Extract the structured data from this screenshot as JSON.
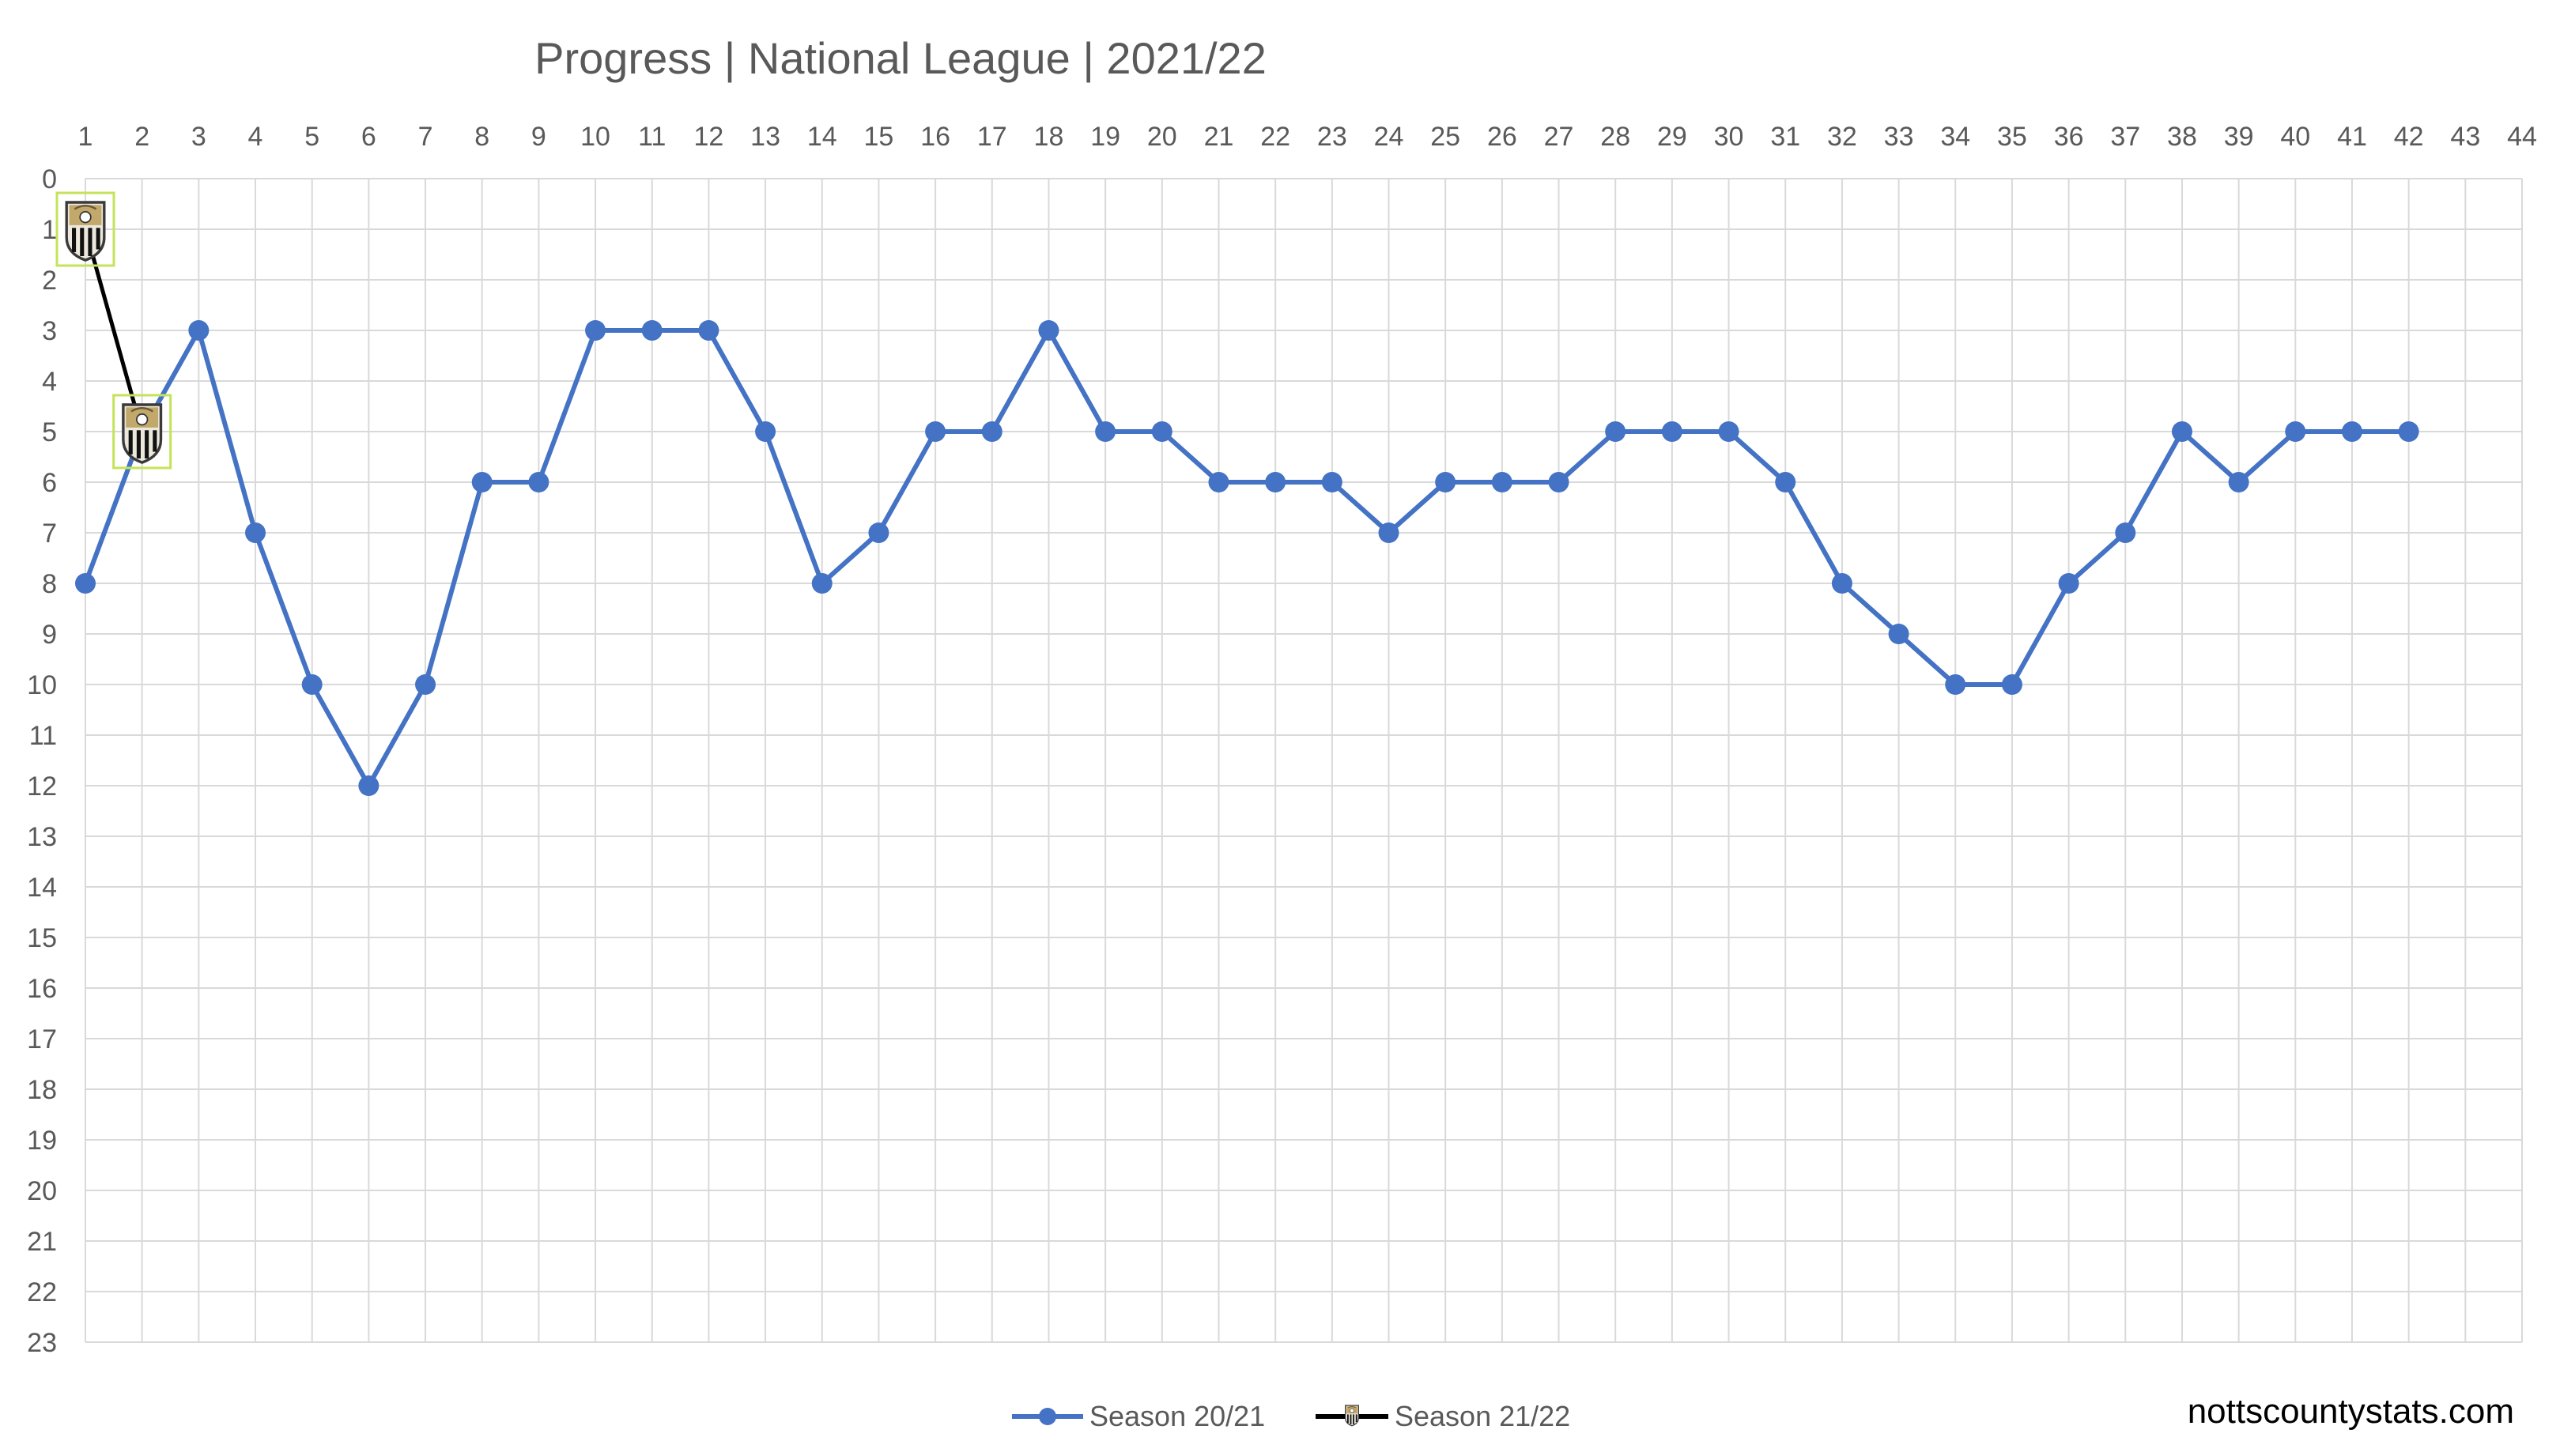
{
  "chart_data": {
    "type": "line",
    "title": "Progress | National League | 2021/22",
    "xlabel": "",
    "ylabel": "",
    "x_ticks": [
      1,
      2,
      3,
      4,
      5,
      6,
      7,
      8,
      9,
      10,
      11,
      12,
      13,
      14,
      15,
      16,
      17,
      18,
      19,
      20,
      21,
      22,
      23,
      24,
      25,
      26,
      27,
      28,
      29,
      30,
      31,
      32,
      33,
      34,
      35,
      36,
      37,
      38,
      39,
      40,
      41,
      42,
      43,
      44
    ],
    "xlim": [
      1,
      44
    ],
    "ylim": [
      0,
      23
    ],
    "y_reversed": true,
    "y_ticks": [
      0,
      1,
      2,
      3,
      4,
      5,
      6,
      7,
      8,
      9,
      10,
      11,
      12,
      13,
      14,
      15,
      16,
      17,
      18,
      19,
      20,
      21,
      22,
      23
    ],
    "grid": true,
    "legend_position": "bottom",
    "series": [
      {
        "name": "Season 20/21",
        "color": "#4472c4",
        "marker": "circle",
        "x": [
          1,
          2,
          3,
          4,
          5,
          6,
          7,
          8,
          9,
          10,
          11,
          12,
          13,
          14,
          15,
          16,
          17,
          18,
          19,
          20,
          21,
          22,
          23,
          24,
          25,
          26,
          27,
          28,
          29,
          30,
          31,
          32,
          33,
          34,
          35,
          36,
          37,
          38,
          39,
          40,
          41,
          42
        ],
        "values": [
          8,
          5,
          3,
          7,
          10,
          12,
          10,
          6,
          6,
          3,
          3,
          3,
          5,
          8,
          7,
          5,
          5,
          3,
          5,
          5,
          6,
          6,
          6,
          7,
          6,
          6,
          6,
          5,
          5,
          5,
          6,
          8,
          9,
          10,
          10,
          8,
          7,
          5,
          6,
          5,
          5,
          5
        ]
      },
      {
        "name": "Season 21/22",
        "color": "#000000",
        "marker": "club-crest-icon",
        "x": [
          1,
          2
        ],
        "values": [
          1,
          5
        ]
      }
    ]
  },
  "watermark": "nottscountystats.com"
}
